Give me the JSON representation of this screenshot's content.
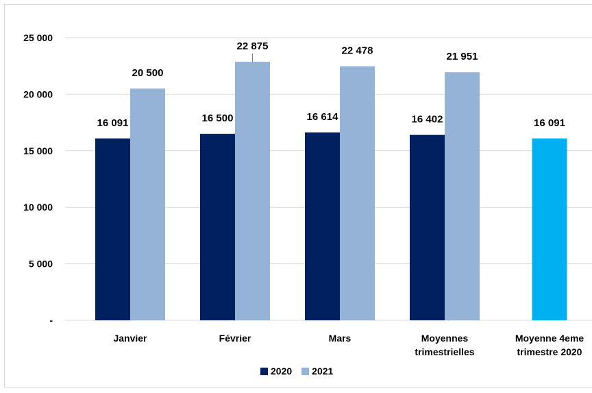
{
  "chart_data": {
    "type": "bar",
    "categories": [
      "Janvier",
      "Février",
      "Mars",
      "Moyennes trimestrielles",
      "Moyenne 4eme trimestre 2020"
    ],
    "category_lines": [
      [
        "Janvier"
      ],
      [
        "Février"
      ],
      [
        "Mars"
      ],
      [
        "Moyennes",
        "trimestrielles"
      ],
      [
        "Moyenne 4eme",
        "trimestre 2020"
      ]
    ],
    "series": [
      {
        "name": "2020",
        "color": "#002060",
        "values": [
          16091,
          16500,
          16614,
          16402,
          null
        ],
        "labels": [
          "16 091",
          "16 500",
          "16 614",
          "16 402",
          ""
        ]
      },
      {
        "name": "2021",
        "color": "#95B3D7",
        "values": [
          20500,
          22875,
          22478,
          21951,
          null
        ],
        "labels": [
          "20 500",
          "22 875",
          "22 478",
          "21 951",
          ""
        ]
      }
    ],
    "highlight": {
      "category": "Moyenne 4eme trimestre 2020",
      "value": 16091,
      "label": "16 091",
      "color": "#00B0F0"
    },
    "ylim": [
      0,
      25000
    ],
    "yticks": [
      0,
      5000,
      10000,
      15000,
      20000,
      25000
    ],
    "ytick_labels": [
      "-",
      "5 000",
      "10 000",
      "15 000",
      "20 000",
      "25 000"
    ],
    "grid": true,
    "legend_position": "bottom"
  }
}
